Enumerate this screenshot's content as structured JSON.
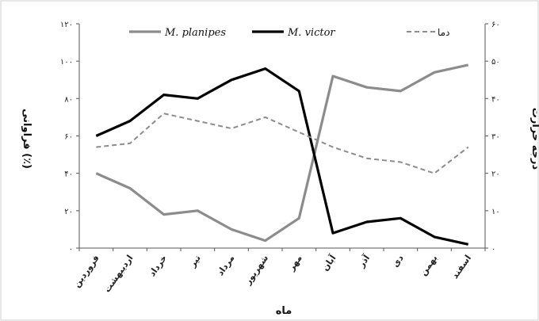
{
  "chart_data": {
    "type": "line",
    "categories": [
      "فروردین",
      "اردیبهشت",
      "خرداد",
      "تیر",
      "مرداد",
      "شهریور",
      "مهر",
      "آبان",
      "آذر",
      "دی",
      "بهمن",
      "اسفند"
    ],
    "xlabel": "ماه",
    "ylabel": "فراوانی (٪)",
    "y2label": "درجه حرارت",
    "ylim": [
      0,
      120
    ],
    "y2lim": [
      0,
      60
    ],
    "yticks": [
      "۰",
      "۲۰",
      "۴۰",
      "۶۰",
      "۸۰",
      "۱۰۰",
      "۱۲۰"
    ],
    "y2ticks": [
      "۰",
      "۱۰",
      "۲۰",
      "۳۰",
      "۴۰",
      "۵۰",
      "۶۰"
    ],
    "legend_position": "top",
    "grid": false,
    "series": [
      {
        "name": "M. planipes",
        "axis": "left",
        "color": "#8c8c8c",
        "style": "solid",
        "values": [
          40,
          32,
          18,
          20,
          10,
          4,
          16,
          92,
          86,
          84,
          94,
          98
        ]
      },
      {
        "name": "M. victor",
        "axis": "left",
        "color": "#000000",
        "style": "solid",
        "values": [
          60,
          68,
          82,
          80,
          90,
          96,
          84,
          8,
          14,
          16,
          6,
          2
        ]
      },
      {
        "name": "دما",
        "axis": "right",
        "color": "#8c8c8c",
        "style": "dashed",
        "values": [
          27,
          28,
          36,
          34,
          32,
          35,
          31,
          27,
          24,
          23,
          20,
          27
        ]
      }
    ]
  }
}
